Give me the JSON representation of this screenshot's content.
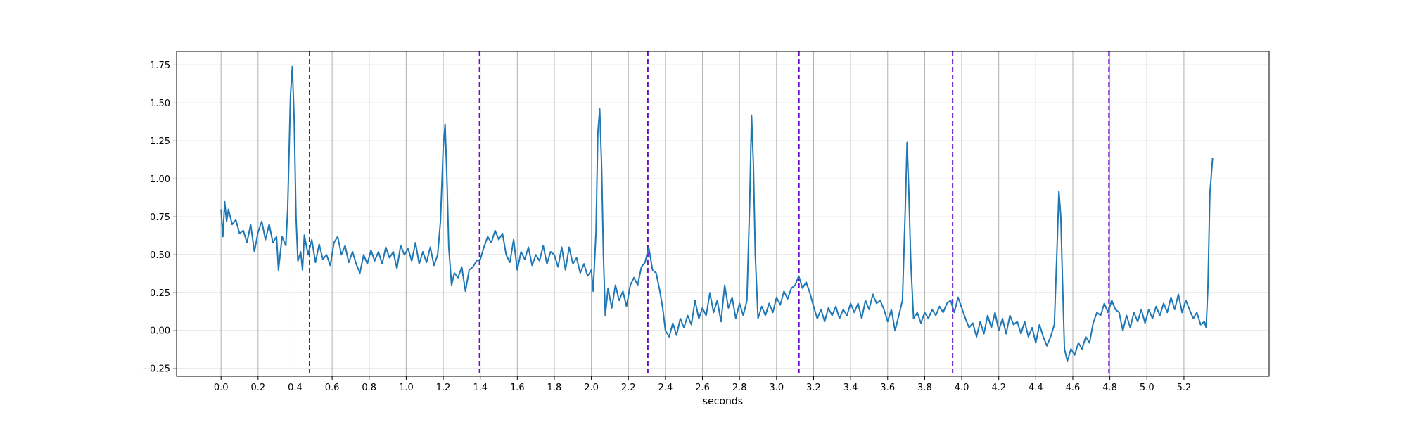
{
  "chart_data": {
    "type": "line",
    "title": "",
    "xlabel": "seconds",
    "ylabel": "",
    "xlim": [
      -0.24,
      5.66
    ],
    "ylim": [
      -0.3,
      1.84
    ],
    "grid": true,
    "x_ticks": [
      0.0,
      0.2,
      0.4,
      0.6,
      0.8,
      1.0,
      1.2,
      1.4,
      1.6,
      1.8,
      2.0,
      2.2,
      2.4,
      2.6,
      2.8,
      3.0,
      3.2,
      3.4,
      3.6,
      3.8,
      4.0,
      4.2,
      4.4,
      4.6,
      4.8,
      5.0,
      5.2
    ],
    "x_tick_labels": [
      "0.0",
      "0.2",
      "0.4",
      "0.6",
      "0.8",
      "1.0",
      "1.2",
      "1.4",
      "1.6",
      "1.8",
      "2.0",
      "2.2",
      "2.4",
      "2.6",
      "2.8",
      "3.0",
      "3.2",
      "3.4",
      "3.6",
      "3.8",
      "4.0",
      "4.2",
      "4.4",
      "4.6",
      "4.8",
      "5.0",
      "5.2"
    ],
    "y_ticks": [
      -0.25,
      0.0,
      0.25,
      0.5,
      0.75,
      1.0,
      1.25,
      1.5,
      1.75
    ],
    "y_tick_labels": [
      "−0.25",
      "0.00",
      "0.25",
      "0.50",
      "0.75",
      "1.00",
      "1.25",
      "1.50",
      "1.75"
    ],
    "series": [
      {
        "color": "#1f77b4",
        "points": [
          [
            0.0,
            0.8
          ],
          [
            0.01,
            0.62
          ],
          [
            0.02,
            0.85
          ],
          [
            0.03,
            0.72
          ],
          [
            0.04,
            0.8
          ],
          [
            0.06,
            0.7
          ],
          [
            0.08,
            0.73
          ],
          [
            0.1,
            0.64
          ],
          [
            0.12,
            0.66
          ],
          [
            0.14,
            0.58
          ],
          [
            0.16,
            0.7
          ],
          [
            0.18,
            0.52
          ],
          [
            0.2,
            0.65
          ],
          [
            0.22,
            0.72
          ],
          [
            0.24,
            0.6
          ],
          [
            0.26,
            0.7
          ],
          [
            0.28,
            0.58
          ],
          [
            0.3,
            0.62
          ],
          [
            0.31,
            0.4
          ],
          [
            0.33,
            0.62
          ],
          [
            0.35,
            0.56
          ],
          [
            0.36,
            0.8
          ],
          [
            0.375,
            1.55
          ],
          [
            0.385,
            1.74
          ],
          [
            0.395,
            1.4
          ],
          [
            0.405,
            0.75
          ],
          [
            0.415,
            0.46
          ],
          [
            0.43,
            0.52
          ],
          [
            0.44,
            0.4
          ],
          [
            0.45,
            0.63
          ],
          [
            0.47,
            0.5
          ],
          [
            0.49,
            0.6
          ],
          [
            0.51,
            0.45
          ],
          [
            0.53,
            0.57
          ],
          [
            0.55,
            0.47
          ],
          [
            0.57,
            0.5
          ],
          [
            0.59,
            0.43
          ],
          [
            0.61,
            0.58
          ],
          [
            0.63,
            0.62
          ],
          [
            0.65,
            0.5
          ],
          [
            0.67,
            0.56
          ],
          [
            0.69,
            0.45
          ],
          [
            0.71,
            0.52
          ],
          [
            0.73,
            0.44
          ],
          [
            0.75,
            0.38
          ],
          [
            0.77,
            0.5
          ],
          [
            0.79,
            0.44
          ],
          [
            0.81,
            0.53
          ],
          [
            0.83,
            0.46
          ],
          [
            0.85,
            0.52
          ],
          [
            0.87,
            0.44
          ],
          [
            0.89,
            0.55
          ],
          [
            0.91,
            0.48
          ],
          [
            0.93,
            0.52
          ],
          [
            0.95,
            0.41
          ],
          [
            0.97,
            0.56
          ],
          [
            0.99,
            0.5
          ],
          [
            1.01,
            0.54
          ],
          [
            1.03,
            0.46
          ],
          [
            1.05,
            0.58
          ],
          [
            1.07,
            0.44
          ],
          [
            1.09,
            0.52
          ],
          [
            1.11,
            0.45
          ],
          [
            1.13,
            0.55
          ],
          [
            1.15,
            0.43
          ],
          [
            1.17,
            0.5
          ],
          [
            1.185,
            0.72
          ],
          [
            1.2,
            1.2
          ],
          [
            1.21,
            1.36
          ],
          [
            1.22,
            1.0
          ],
          [
            1.23,
            0.55
          ],
          [
            1.245,
            0.3
          ],
          [
            1.26,
            0.38
          ],
          [
            1.28,
            0.35
          ],
          [
            1.3,
            0.42
          ],
          [
            1.32,
            0.26
          ],
          [
            1.34,
            0.4
          ],
          [
            1.36,
            0.42
          ],
          [
            1.38,
            0.46
          ],
          [
            1.4,
            0.47
          ],
          [
            1.42,
            0.55
          ],
          [
            1.44,
            0.62
          ],
          [
            1.46,
            0.58
          ],
          [
            1.48,
            0.66
          ],
          [
            1.5,
            0.6
          ],
          [
            1.52,
            0.64
          ],
          [
            1.54,
            0.5
          ],
          [
            1.56,
            0.45
          ],
          [
            1.58,
            0.6
          ],
          [
            1.6,
            0.4
          ],
          [
            1.62,
            0.52
          ],
          [
            1.64,
            0.47
          ],
          [
            1.66,
            0.55
          ],
          [
            1.68,
            0.43
          ],
          [
            1.7,
            0.5
          ],
          [
            1.72,
            0.46
          ],
          [
            1.74,
            0.56
          ],
          [
            1.76,
            0.44
          ],
          [
            1.78,
            0.52
          ],
          [
            1.8,
            0.5
          ],
          [
            1.82,
            0.42
          ],
          [
            1.84,
            0.55
          ],
          [
            1.86,
            0.4
          ],
          [
            1.88,
            0.55
          ],
          [
            1.9,
            0.44
          ],
          [
            1.92,
            0.48
          ],
          [
            1.94,
            0.38
          ],
          [
            1.96,
            0.44
          ],
          [
            1.98,
            0.36
          ],
          [
            2.0,
            0.4
          ],
          [
            2.01,
            0.26
          ],
          [
            2.025,
            0.65
          ],
          [
            2.035,
            1.3
          ],
          [
            2.045,
            1.46
          ],
          [
            2.055,
            1.1
          ],
          [
            2.065,
            0.5
          ],
          [
            2.075,
            0.1
          ],
          [
            2.09,
            0.28
          ],
          [
            2.11,
            0.15
          ],
          [
            2.13,
            0.3
          ],
          [
            2.15,
            0.2
          ],
          [
            2.17,
            0.26
          ],
          [
            2.19,
            0.16
          ],
          [
            2.21,
            0.3
          ],
          [
            2.23,
            0.35
          ],
          [
            2.25,
            0.3
          ],
          [
            2.27,
            0.42
          ],
          [
            2.29,
            0.45
          ],
          [
            2.31,
            0.55
          ],
          [
            2.33,
            0.4
          ],
          [
            2.35,
            0.38
          ],
          [
            2.37,
            0.26
          ],
          [
            2.385,
            0.15
          ],
          [
            2.4,
            0.0
          ],
          [
            2.42,
            -0.04
          ],
          [
            2.44,
            0.05
          ],
          [
            2.46,
            -0.03
          ],
          [
            2.48,
            0.08
          ],
          [
            2.5,
            0.02
          ],
          [
            2.52,
            0.1
          ],
          [
            2.54,
            0.04
          ],
          [
            2.56,
            0.2
          ],
          [
            2.58,
            0.08
          ],
          [
            2.6,
            0.15
          ],
          [
            2.62,
            0.1
          ],
          [
            2.64,
            0.25
          ],
          [
            2.66,
            0.12
          ],
          [
            2.68,
            0.2
          ],
          [
            2.7,
            0.06
          ],
          [
            2.72,
            0.3
          ],
          [
            2.74,
            0.15
          ],
          [
            2.76,
            0.22
          ],
          [
            2.78,
            0.08
          ],
          [
            2.8,
            0.18
          ],
          [
            2.82,
            0.1
          ],
          [
            2.84,
            0.2
          ],
          [
            2.855,
            0.85
          ],
          [
            2.865,
            1.42
          ],
          [
            2.875,
            1.1
          ],
          [
            2.885,
            0.5
          ],
          [
            2.9,
            0.08
          ],
          [
            2.92,
            0.16
          ],
          [
            2.94,
            0.1
          ],
          [
            2.96,
            0.18
          ],
          [
            2.98,
            0.12
          ],
          [
            3.0,
            0.22
          ],
          [
            3.02,
            0.17
          ],
          [
            3.04,
            0.26
          ],
          [
            3.06,
            0.21
          ],
          [
            3.08,
            0.28
          ],
          [
            3.1,
            0.3
          ],
          [
            3.12,
            0.36
          ],
          [
            3.14,
            0.28
          ],
          [
            3.16,
            0.32
          ],
          [
            3.18,
            0.25
          ],
          [
            3.2,
            0.16
          ],
          [
            3.22,
            0.08
          ],
          [
            3.24,
            0.14
          ],
          [
            3.26,
            0.06
          ],
          [
            3.28,
            0.15
          ],
          [
            3.3,
            0.1
          ],
          [
            3.32,
            0.16
          ],
          [
            3.34,
            0.08
          ],
          [
            3.36,
            0.14
          ],
          [
            3.38,
            0.1
          ],
          [
            3.4,
            0.18
          ],
          [
            3.42,
            0.12
          ],
          [
            3.44,
            0.18
          ],
          [
            3.46,
            0.08
          ],
          [
            3.48,
            0.2
          ],
          [
            3.5,
            0.14
          ],
          [
            3.52,
            0.24
          ],
          [
            3.54,
            0.18
          ],
          [
            3.56,
            0.2
          ],
          [
            3.58,
            0.14
          ],
          [
            3.6,
            0.06
          ],
          [
            3.62,
            0.14
          ],
          [
            3.64,
            0.0
          ],
          [
            3.66,
            0.1
          ],
          [
            3.68,
            0.2
          ],
          [
            3.695,
            0.8
          ],
          [
            3.705,
            1.24
          ],
          [
            3.715,
            0.9
          ],
          [
            3.725,
            0.45
          ],
          [
            3.74,
            0.08
          ],
          [
            3.76,
            0.12
          ],
          [
            3.78,
            0.05
          ],
          [
            3.8,
            0.12
          ],
          [
            3.82,
            0.08
          ],
          [
            3.84,
            0.14
          ],
          [
            3.86,
            0.1
          ],
          [
            3.88,
            0.16
          ],
          [
            3.9,
            0.12
          ],
          [
            3.92,
            0.18
          ],
          [
            3.94,
            0.2
          ],
          [
            3.96,
            0.12
          ],
          [
            3.98,
            0.22
          ],
          [
            4.0,
            0.15
          ],
          [
            4.02,
            0.08
          ],
          [
            4.04,
            0.02
          ],
          [
            4.06,
            0.05
          ],
          [
            4.08,
            -0.04
          ],
          [
            4.1,
            0.06
          ],
          [
            4.12,
            -0.02
          ],
          [
            4.14,
            0.1
          ],
          [
            4.16,
            0.02
          ],
          [
            4.18,
            0.12
          ],
          [
            4.2,
            0.0
          ],
          [
            4.22,
            0.08
          ],
          [
            4.24,
            -0.02
          ],
          [
            4.26,
            0.1
          ],
          [
            4.28,
            0.04
          ],
          [
            4.3,
            0.06
          ],
          [
            4.32,
            -0.02
          ],
          [
            4.34,
            0.06
          ],
          [
            4.36,
            -0.04
          ],
          [
            4.38,
            0.02
          ],
          [
            4.4,
            -0.08
          ],
          [
            4.42,
            0.04
          ],
          [
            4.44,
            -0.04
          ],
          [
            4.46,
            -0.1
          ],
          [
            4.48,
            -0.04
          ],
          [
            4.5,
            0.04
          ],
          [
            4.515,
            0.55
          ],
          [
            4.525,
            0.92
          ],
          [
            4.535,
            0.75
          ],
          [
            4.545,
            0.3
          ],
          [
            4.555,
            -0.12
          ],
          [
            4.57,
            -0.2
          ],
          [
            4.59,
            -0.12
          ],
          [
            4.61,
            -0.16
          ],
          [
            4.63,
            -0.08
          ],
          [
            4.65,
            -0.12
          ],
          [
            4.67,
            -0.04
          ],
          [
            4.69,
            -0.08
          ],
          [
            4.71,
            0.05
          ],
          [
            4.73,
            0.12
          ],
          [
            4.75,
            0.1
          ],
          [
            4.77,
            0.18
          ],
          [
            4.79,
            0.12
          ],
          [
            4.81,
            0.2
          ],
          [
            4.83,
            0.14
          ],
          [
            4.85,
            0.12
          ],
          [
            4.87,
            0.0
          ],
          [
            4.89,
            0.1
          ],
          [
            4.91,
            0.02
          ],
          [
            4.93,
            0.12
          ],
          [
            4.95,
            0.06
          ],
          [
            4.97,
            0.14
          ],
          [
            4.99,
            0.05
          ],
          [
            5.01,
            0.14
          ],
          [
            5.03,
            0.08
          ],
          [
            5.05,
            0.16
          ],
          [
            5.07,
            0.1
          ],
          [
            5.09,
            0.18
          ],
          [
            5.11,
            0.12
          ],
          [
            5.13,
            0.22
          ],
          [
            5.15,
            0.14
          ],
          [
            5.17,
            0.24
          ],
          [
            5.19,
            0.12
          ],
          [
            5.21,
            0.2
          ],
          [
            5.23,
            0.14
          ],
          [
            5.25,
            0.08
          ],
          [
            5.27,
            0.12
          ],
          [
            5.29,
            0.04
          ],
          [
            5.31,
            0.06
          ],
          [
            5.32,
            0.02
          ],
          [
            5.33,
            0.3
          ],
          [
            5.34,
            0.9
          ],
          [
            5.355,
            1.14
          ]
        ]
      }
    ],
    "vertical_lines": {
      "color": "#6a0dcc",
      "style": "dashed",
      "x": [
        0.478,
        1.396,
        2.305,
        3.121,
        3.951,
        4.795
      ]
    }
  }
}
